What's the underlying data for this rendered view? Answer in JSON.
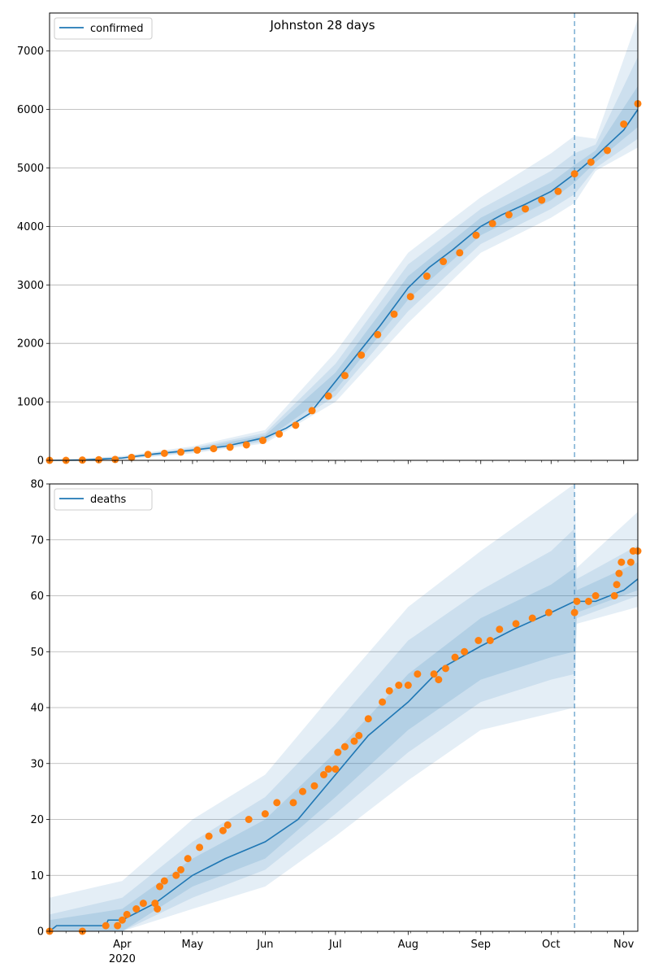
{
  "figure": {
    "title": "Johnston 28 days",
    "x_tick_labels": [
      "Apr",
      "May",
      "Jun",
      "Jul",
      "Aug",
      "Sep",
      "Oct",
      "Nov"
    ],
    "x_year_label": "2020",
    "forecast_line_date": "2020-10-11",
    "x_range": [
      "2020-03-01",
      "2020-11-07"
    ]
  },
  "chart_data": [
    {
      "type": "line",
      "legend": "confirmed",
      "ylim": [
        0,
        7650
      ],
      "y_ticks": [
        0,
        1000,
        2000,
        3000,
        4000,
        5000,
        6000,
        7000
      ],
      "grid": "horizontal",
      "legend_position": "top-left",
      "colors": {
        "model": "#1f77b4",
        "observed": "#ff7f0e",
        "band": "#1f77b4"
      },
      "model_line": [
        [
          "2020-03-01",
          0
        ],
        [
          "2020-03-15",
          5
        ],
        [
          "2020-04-01",
          40
        ],
        [
          "2020-04-15",
          110
        ],
        [
          "2020-05-01",
          175
        ],
        [
          "2020-05-15",
          240
        ],
        [
          "2020-06-01",
          390
        ],
        [
          "2020-06-10",
          550
        ],
        [
          "2020-06-20",
          800
        ],
        [
          "2020-07-01",
          1350
        ],
        [
          "2020-07-10",
          1800
        ],
        [
          "2020-07-20",
          2300
        ],
        [
          "2020-08-01",
          2950
        ],
        [
          "2020-08-10",
          3300
        ],
        [
          "2020-08-20",
          3600
        ],
        [
          "2020-09-01",
          4000
        ],
        [
          "2020-09-10",
          4200
        ],
        [
          "2020-09-20",
          4380
        ],
        [
          "2020-10-01",
          4600
        ],
        [
          "2020-10-11",
          4900
        ],
        [
          "2020-10-20",
          5200
        ],
        [
          "2020-11-01",
          5650
        ],
        [
          "2020-11-07",
          6000
        ]
      ],
      "band_inner": [
        [
          "2020-03-01",
          0,
          0
        ],
        [
          "2020-04-01",
          30,
          50
        ],
        [
          "2020-05-01",
          155,
          195
        ],
        [
          "2020-06-01",
          350,
          430
        ],
        [
          "2020-07-01",
          1200,
          1500
        ],
        [
          "2020-08-01",
          2750,
          3150
        ],
        [
          "2020-09-01",
          3850,
          4150
        ],
        [
          "2020-10-01",
          4450,
          4750
        ],
        [
          "2020-10-11",
          4750,
          5050
        ],
        [
          "2020-10-20",
          5100,
          5300
        ],
        [
          "2020-11-07",
          5700,
          6400
        ]
      ],
      "band_middle": [
        [
          "2020-03-01",
          0,
          0
        ],
        [
          "2020-04-01",
          25,
          60
        ],
        [
          "2020-05-01",
          140,
          215
        ],
        [
          "2020-06-01",
          320,
          470
        ],
        [
          "2020-07-01",
          1100,
          1650
        ],
        [
          "2020-08-01",
          2550,
          3350
        ],
        [
          "2020-09-01",
          3700,
          4300
        ],
        [
          "2020-10-01",
          4300,
          4950
        ],
        [
          "2020-10-11",
          4550,
          5250
        ],
        [
          "2020-10-20",
          5000,
          5400
        ],
        [
          "2020-11-07",
          5500,
          6900
        ]
      ],
      "band_outer": [
        [
          "2020-03-01",
          0,
          0
        ],
        [
          "2020-04-01",
          15,
          75
        ],
        [
          "2020-05-01",
          120,
          240
        ],
        [
          "2020-06-01",
          290,
          520
        ],
        [
          "2020-07-01",
          1000,
          1850
        ],
        [
          "2020-08-01",
          2350,
          3550
        ],
        [
          "2020-09-01",
          3550,
          4500
        ],
        [
          "2020-10-01",
          4150,
          5250
        ],
        [
          "2020-10-11",
          4400,
          5550
        ],
        [
          "2020-10-20",
          4950,
          5500
        ],
        [
          "2020-11-07",
          5350,
          7550
        ]
      ],
      "observed": [
        [
          "2020-03-01",
          0
        ],
        [
          "2020-03-08",
          0
        ],
        [
          "2020-03-15",
          5
        ],
        [
          "2020-03-22",
          10
        ],
        [
          "2020-03-29",
          15
        ],
        [
          "2020-04-05",
          50
        ],
        [
          "2020-04-12",
          100
        ],
        [
          "2020-04-19",
          120
        ],
        [
          "2020-04-26",
          140
        ],
        [
          "2020-05-03",
          175
        ],
        [
          "2020-05-10",
          200
        ],
        [
          "2020-05-17",
          225
        ],
        [
          "2020-05-24",
          265
        ],
        [
          "2020-05-31",
          340
        ],
        [
          "2020-06-07",
          450
        ],
        [
          "2020-06-14",
          600
        ],
        [
          "2020-06-21",
          850
        ],
        [
          "2020-06-28",
          1100
        ],
        [
          "2020-07-05",
          1450
        ],
        [
          "2020-07-12",
          1800
        ],
        [
          "2020-07-19",
          2150
        ],
        [
          "2020-07-26",
          2500
        ],
        [
          "2020-08-02",
          2800
        ],
        [
          "2020-08-09",
          3150
        ],
        [
          "2020-08-16",
          3400
        ],
        [
          "2020-08-23",
          3550
        ],
        [
          "2020-08-30",
          3850
        ],
        [
          "2020-09-06",
          4050
        ],
        [
          "2020-09-13",
          4200
        ],
        [
          "2020-09-20",
          4300
        ],
        [
          "2020-09-27",
          4450
        ],
        [
          "2020-10-04",
          4600
        ],
        [
          "2020-10-11",
          4900
        ],
        [
          "2020-10-18",
          5100
        ],
        [
          "2020-10-25",
          5300
        ],
        [
          "2020-11-01",
          5750
        ],
        [
          "2020-11-07",
          6100
        ]
      ]
    },
    {
      "type": "line",
      "legend": "deaths",
      "ylim": [
        0,
        80
      ],
      "y_ticks": [
        0,
        10,
        20,
        30,
        40,
        50,
        60,
        70,
        80
      ],
      "grid": "horizontal",
      "legend_position": "top-left",
      "colors": {
        "model": "#1f77b4",
        "observed": "#ff7f0e",
        "band": "#1f77b4"
      },
      "model_line": [
        [
          "2020-03-01",
          0
        ],
        [
          "2020-03-04",
          1
        ],
        [
          "2020-03-25",
          1
        ],
        [
          "2020-03-26",
          2
        ],
        [
          "2020-04-01",
          2
        ],
        [
          "2020-04-15",
          5
        ],
        [
          "2020-05-01",
          10
        ],
        [
          "2020-05-15",
          13
        ],
        [
          "2020-06-01",
          16
        ],
        [
          "2020-06-15",
          20
        ],
        [
          "2020-07-01",
          28
        ],
        [
          "2020-07-15",
          35
        ],
        [
          "2020-08-01",
          41
        ],
        [
          "2020-08-15",
          47
        ],
        [
          "2020-09-01",
          51
        ],
        [
          "2020-09-15",
          54
        ],
        [
          "2020-10-01",
          57
        ],
        [
          "2020-10-11",
          59
        ],
        [
          "2020-10-20",
          59
        ],
        [
          "2020-11-01",
          61
        ],
        [
          "2020-11-07",
          63
        ]
      ],
      "band_inner": [
        [
          "2020-03-01",
          0,
          2
        ],
        [
          "2020-04-01",
          0,
          4
        ],
        [
          "2020-05-01",
          8,
          13
        ],
        [
          "2020-06-01",
          13,
          20
        ],
        [
          "2020-07-01",
          24,
          32
        ],
        [
          "2020-08-01",
          36,
          46
        ],
        [
          "2020-09-01",
          45,
          56
        ],
        [
          "2020-10-01",
          49,
          62
        ],
        [
          "2020-10-11",
          50,
          65
        ],
        [
          "2020-10-12",
          57,
          61
        ],
        [
          "2020-11-07",
          61,
          66
        ]
      ],
      "band_middle": [
        [
          "2020-03-01",
          0,
          3
        ],
        [
          "2020-04-01",
          0,
          6
        ],
        [
          "2020-05-01",
          6,
          16
        ],
        [
          "2020-06-01",
          11,
          24
        ],
        [
          "2020-07-01",
          21,
          37
        ],
        [
          "2020-08-01",
          32,
          52
        ],
        [
          "2020-09-01",
          41,
          61
        ],
        [
          "2020-10-01",
          45,
          68
        ],
        [
          "2020-10-11",
          46,
          72
        ],
        [
          "2020-10-12",
          56,
          63
        ],
        [
          "2020-11-07",
          60,
          69
        ]
      ],
      "band_outer": [
        [
          "2020-03-01",
          0,
          6
        ],
        [
          "2020-04-01",
          0,
          9
        ],
        [
          "2020-05-01",
          4,
          20
        ],
        [
          "2020-06-01",
          8,
          28
        ],
        [
          "2020-07-01",
          17,
          43
        ],
        [
          "2020-08-01",
          27,
          58
        ],
        [
          "2020-09-01",
          36,
          68
        ],
        [
          "2020-10-01",
          39,
          77
        ],
        [
          "2020-10-11",
          40,
          80
        ],
        [
          "2020-10-12",
          55,
          65
        ],
        [
          "2020-11-07",
          58,
          75
        ]
      ],
      "observed": [
        [
          "2020-03-01",
          0
        ],
        [
          "2020-03-15",
          0
        ],
        [
          "2020-03-25",
          1
        ],
        [
          "2020-03-30",
          1
        ],
        [
          "2020-04-01",
          2
        ],
        [
          "2020-04-03",
          3
        ],
        [
          "2020-04-07",
          4
        ],
        [
          "2020-04-10",
          5
        ],
        [
          "2020-04-15",
          5
        ],
        [
          "2020-04-16",
          4
        ],
        [
          "2020-04-17",
          8
        ],
        [
          "2020-04-19",
          9
        ],
        [
          "2020-04-24",
          10
        ],
        [
          "2020-04-26",
          11
        ],
        [
          "2020-04-29",
          13
        ],
        [
          "2020-05-04",
          15
        ],
        [
          "2020-05-08",
          17
        ],
        [
          "2020-05-14",
          18
        ],
        [
          "2020-05-16",
          19
        ],
        [
          "2020-05-25",
          20
        ],
        [
          "2020-06-01",
          21
        ],
        [
          "2020-06-06",
          23
        ],
        [
          "2020-06-13",
          23
        ],
        [
          "2020-06-17",
          25
        ],
        [
          "2020-06-22",
          26
        ],
        [
          "2020-06-26",
          28
        ],
        [
          "2020-06-28",
          29
        ],
        [
          "2020-07-01",
          29
        ],
        [
          "2020-07-02",
          32
        ],
        [
          "2020-07-05",
          33
        ],
        [
          "2020-07-09",
          34
        ],
        [
          "2020-07-11",
          35
        ],
        [
          "2020-07-15",
          38
        ],
        [
          "2020-07-21",
          41
        ],
        [
          "2020-07-24",
          43
        ],
        [
          "2020-07-28",
          44
        ],
        [
          "2020-08-01",
          44
        ],
        [
          "2020-08-05",
          46
        ],
        [
          "2020-08-12",
          46
        ],
        [
          "2020-08-14",
          45
        ],
        [
          "2020-08-17",
          47
        ],
        [
          "2020-08-21",
          49
        ],
        [
          "2020-08-25",
          50
        ],
        [
          "2020-08-31",
          52
        ],
        [
          "2020-09-05",
          52
        ],
        [
          "2020-09-09",
          54
        ],
        [
          "2020-09-16",
          55
        ],
        [
          "2020-09-23",
          56
        ],
        [
          "2020-09-30",
          57
        ],
        [
          "2020-10-11",
          57
        ],
        [
          "2020-10-12",
          59
        ],
        [
          "2020-10-17",
          59
        ],
        [
          "2020-10-20",
          60
        ],
        [
          "2020-10-28",
          60
        ],
        [
          "2020-10-29",
          62
        ],
        [
          "2020-10-30",
          64
        ],
        [
          "2020-10-31",
          66
        ],
        [
          "2020-11-04",
          66
        ],
        [
          "2020-11-05",
          68
        ],
        [
          "2020-11-07",
          68
        ]
      ]
    }
  ]
}
